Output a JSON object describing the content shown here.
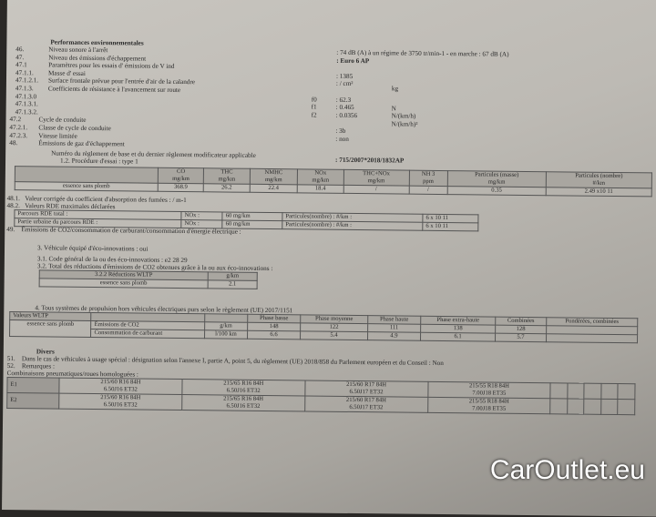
{
  "heading": "Performances environnementales",
  "lines": [
    {
      "num": "46.",
      "label": "Niveau sonore à l'arrêt",
      "value": ": 74 dB (A)   à un régime de 3750 tr/min-1 - en marche :  67 dB (A)"
    },
    {
      "num": "47.",
      "label": "Niveau des émissions d'échappement",
      "value": ": Euro 6 AP"
    },
    {
      "num": "47.1",
      "label": "Paramètres pour les essais d' émissions de V ind",
      "value": ""
    },
    {
      "num": "47.1.1.",
      "label": "Masse d' essai",
      "value": ": 1385"
    },
    {
      "num": "47.1.2.1.",
      "label": "Surface frontale prévue pour l'entrée d'air de la calandre",
      "value": ": / cm²"
    },
    {
      "num": "47.1.3.",
      "label": "Coefficients de résistance à l'avancement sur route",
      "value": ""
    },
    {
      "num": "47.1.3.0",
      "label": "",
      "sym": "f0",
      "value": ": 62.3"
    },
    {
      "num": "47.1.3.1.",
      "label": "",
      "sym": "f1",
      "value": ": 0.465"
    },
    {
      "num": "47.1.3.2.",
      "label": "",
      "sym": "f2",
      "value": ": 0.0356"
    },
    {
      "num": "47.2",
      "label": "Cycle de conduite",
      "value": ""
    },
    {
      "num": "47.2.1.",
      "label": "Classe de cycle de conduite",
      "value": ": 3b"
    },
    {
      "num": "47.2.3.",
      "label": "Vitesse limitée",
      "value": ": non"
    },
    {
      "num": "48.",
      "label": "Émissions de gaz d'échappement",
      "value": ""
    }
  ],
  "units": {
    "mass": "kg",
    "f0": "N",
    "f1": "N/(km/h)",
    "f2": "N/(km/h)²"
  },
  "regulation_label": "Numéro du règlement de base et du dernier règlement modificateur applicable",
  "regulation_value": ": 715/2007*2018/1832AP",
  "procedure": "1.2. Procédure d'essai : type 1",
  "emissions": {
    "headers": [
      [
        "CO",
        "mg/km"
      ],
      [
        "THC",
        "mg/km"
      ],
      [
        "NMHC",
        "mg/km"
      ],
      [
        "NOx",
        "mg/km"
      ],
      [
        "THC+NOx",
        "mg/km"
      ],
      [
        "NH 3",
        "ppm"
      ],
      [
        "Particules (masse)",
        "mg/km"
      ],
      [
        "Particules (nombre)",
        "#/km"
      ]
    ],
    "row": {
      "label": "essence sans plomb",
      "values": [
        "368.9",
        "26.2",
        "22.4",
        "18.4",
        "/",
        "/",
        "0.35",
        "2.49 x10 11"
      ]
    }
  },
  "l481": {
    "num": "48.1.",
    "label": "Valeur corrigée du coefficient d'absorption des fumées : / m-1"
  },
  "l482": {
    "num": "48.2.",
    "label": "Valeurs RDE maximales déclarées"
  },
  "rde": [
    [
      "Parcours RDE total :",
      "NOx :",
      "60 mg/km",
      "Particules(nombre) : #/km :",
      "6 x 10 11"
    ],
    [
      "Partie urbaine du parcours RDE :",
      "NOx :",
      "60 mg/km",
      "Particules(nombre) : #/km :",
      "6 x 10 11"
    ]
  ],
  "l49": {
    "num": "49.",
    "label": "Émissions de CO2/consommation de carburant/consommation d'énergie électrique :"
  },
  "eco": [
    "3. Véhicule équipé d'éco-innovations : oui",
    "3.1. Code général de la ou des éco-innovations : e2 28 29",
    "3.2. Total des réductions d'émissions de CO2 obtenues grâce à la ou aux éco-innovations :"
  ],
  "eco_table": [
    [
      "3.2.2 Réductions WLTP",
      "g/km"
    ],
    [
      "essence sans plomb",
      "2.1"
    ]
  ],
  "s4": "4. Tous systèmes de propulsion hors véhicules électriques purs selon le règlement (UE) 2017/1151",
  "wltp": {
    "title": "Valeurs WLTP",
    "fuel": "essence sans plomb",
    "headers": [
      "Phase basse",
      "Phase moyenne",
      "Phase haute",
      "Phase extra-haute",
      "Combinées",
      "Pondérées, combinées"
    ],
    "rows": [
      [
        "Émissions de CO2",
        "g/km",
        "148",
        "122",
        "111",
        "138",
        "128",
        ""
      ],
      [
        "Consommation de carburant",
        "l/100 km",
        "6.6",
        "5.4",
        "4.9",
        "6.1",
        "5.7",
        ""
      ]
    ]
  },
  "divers": "Divers",
  "l51": {
    "num": "51.",
    "label": "Dans le cas de véhicules à usage spécial : désignation selon l'annexe I, partie A, point 5, du règlement (UE) 2018/858 du Parlement européen et du Conseil : Non"
  },
  "l52": {
    "num": "52.",
    "label": "Remarques :"
  },
  "tyres_label": "Combinaisons pneumatiques/roues homologuées :",
  "tyres": [
    {
      "axle": "E1",
      "items": [
        [
          "215/60 R16 84H",
          "6.50J16 ET32"
        ],
        [
          "215/65 R16 84H",
          "6.50J16 ET32"
        ],
        [
          "215/60 R17 84H",
          "6.50J17 ET32"
        ],
        [
          "215/55 R18 84H",
          "7.00J18 ET35"
        ]
      ]
    },
    {
      "axle": "E2",
      "items": [
        [
          "215/60 R16 84H",
          "6.50J16 ET32"
        ],
        [
          "215/65 R16 84H",
          "6.50J16 ET32"
        ],
        [
          "215/60 R17 84H",
          "6.50J17 ET32"
        ],
        [
          "215/55 R18 84H",
          "7.00J18 ET35"
        ]
      ]
    }
  ],
  "watermark": "CarOutlet.eu"
}
